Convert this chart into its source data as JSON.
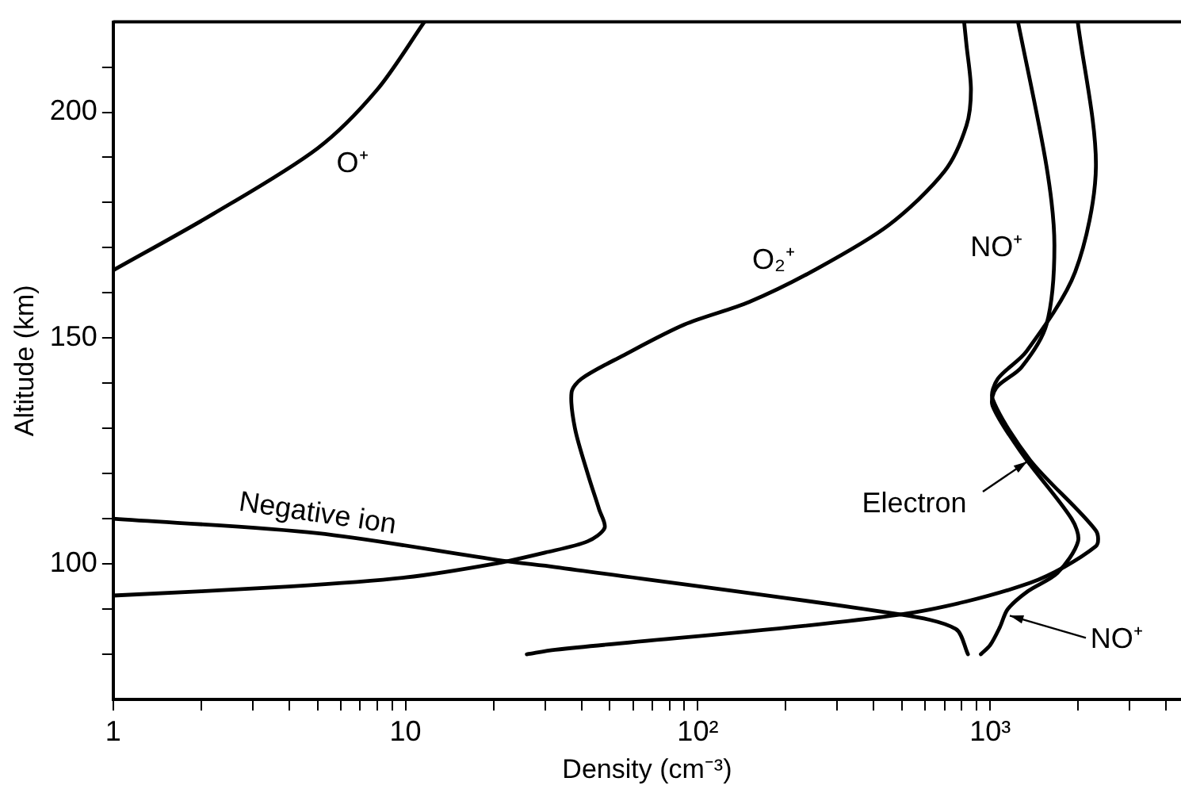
{
  "chart_data": {
    "type": "line",
    "xlabel": "Density (cm⁻³)",
    "ylabel": "Altitude (km)",
    "log": "x",
    "grid": false,
    "legend": false,
    "marker": "none",
    "line_style": "solid",
    "xlim": [
      1,
      4500
    ],
    "ylim": [
      70,
      220
    ],
    "xticks": [
      {
        "value": 1,
        "label": "1"
      },
      {
        "value": 2,
        "label": null
      },
      {
        "value": 3,
        "label": null
      },
      {
        "value": 4,
        "label": null
      },
      {
        "value": 5,
        "label": null
      },
      {
        "value": 6,
        "label": null
      },
      {
        "value": 7,
        "label": null
      },
      {
        "value": 8,
        "label": null
      },
      {
        "value": 9,
        "label": null
      },
      {
        "value": 10,
        "label": "10"
      },
      {
        "value": 20,
        "label": null
      },
      {
        "value": 30,
        "label": null
      },
      {
        "value": 40,
        "label": null
      },
      {
        "value": 50,
        "label": null
      },
      {
        "value": 60,
        "label": null
      },
      {
        "value": 70,
        "label": null
      },
      {
        "value": 80,
        "label": null
      },
      {
        "value": 90,
        "label": null
      },
      {
        "value": 100,
        "label": "10²"
      },
      {
        "value": 200,
        "label": null
      },
      {
        "value": 300,
        "label": null
      },
      {
        "value": 400,
        "label": null
      },
      {
        "value": 500,
        "label": null
      },
      {
        "value": 600,
        "label": null
      },
      {
        "value": 700,
        "label": null
      },
      {
        "value": 800,
        "label": null
      },
      {
        "value": 900,
        "label": null
      },
      {
        "value": 1000,
        "label": "10³"
      },
      {
        "value": 2000,
        "label": null
      },
      {
        "value": 3000,
        "label": null
      },
      {
        "value": 4000,
        "label": null
      }
    ],
    "yticks": [
      {
        "value": 80,
        "label": null
      },
      {
        "value": 90,
        "label": null
      },
      100,
      {
        "value": 110,
        "label": null
      },
      {
        "value": 120,
        "label": null
      },
      {
        "value": 130,
        "label": null
      },
      {
        "value": 140,
        "label": null
      },
      150,
      {
        "value": 160,
        "label": null
      },
      {
        "value": 170,
        "label": null
      },
      {
        "value": 180,
        "label": null
      },
      {
        "value": 190,
        "label": null
      },
      200,
      {
        "value": 210,
        "label": null
      }
    ],
    "series": [
      {
        "name": "O⁺",
        "color": "#000000",
        "x": [
          1,
          2.2,
          5,
          8,
          11.6
        ],
        "values": [
          165,
          177.5,
          192,
          205,
          220
        ]
      },
      {
        "name": "O₂⁺",
        "color": "#000000",
        "x": [
          1,
          4,
          10,
          20,
          30,
          42,
          48,
          46,
          42,
          38,
          37,
          40,
          55,
          90,
          150,
          250,
          450,
          700,
          830,
          860,
          830,
          815
        ],
        "values": [
          93,
          95,
          97,
          100,
          102.5,
          105,
          108,
          112,
          120,
          130,
          138,
          141,
          146,
          153,
          158,
          165,
          175,
          187,
          197,
          205,
          215,
          220
        ]
      },
      {
        "name": "NO⁺",
        "color": "#000000",
        "x": [
          930,
          1000,
          1080,
          1150,
          1350,
          1700,
          2000,
          1900,
          1300,
          1020,
          1050,
          1280,
          1560,
          1660,
          1560,
          1246
        ],
        "values": [
          80,
          82,
          86,
          90,
          94,
          98,
          105,
          110,
          124,
          135,
          139,
          143.5,
          153,
          170.5,
          188,
          220
        ]
      },
      {
        "name": "Negative ion",
        "color": "#000000",
        "x": [
          1,
          5,
          21.5,
          32.5,
          494,
          763,
          840
        ],
        "values": [
          110,
          106.8,
          100.7,
          99.3,
          88.8,
          85.6,
          80
        ]
      },
      {
        "name": "Electron",
        "color": "#000000",
        "x": [
          26,
          32.5,
          494,
          1370,
          2300,
          2300,
          1370,
          1020,
          1063,
          1330,
          1954,
          2302,
          1995
        ],
        "values": [
          80,
          81,
          88.8,
          95.8,
          103.9,
          107.4,
          123,
          136.5,
          141,
          147,
          164.6,
          188,
          220
        ]
      }
    ],
    "annotations": [
      {
        "text": "NO⁺",
        "x": 1110,
        "y": 88
      }
    ]
  }
}
